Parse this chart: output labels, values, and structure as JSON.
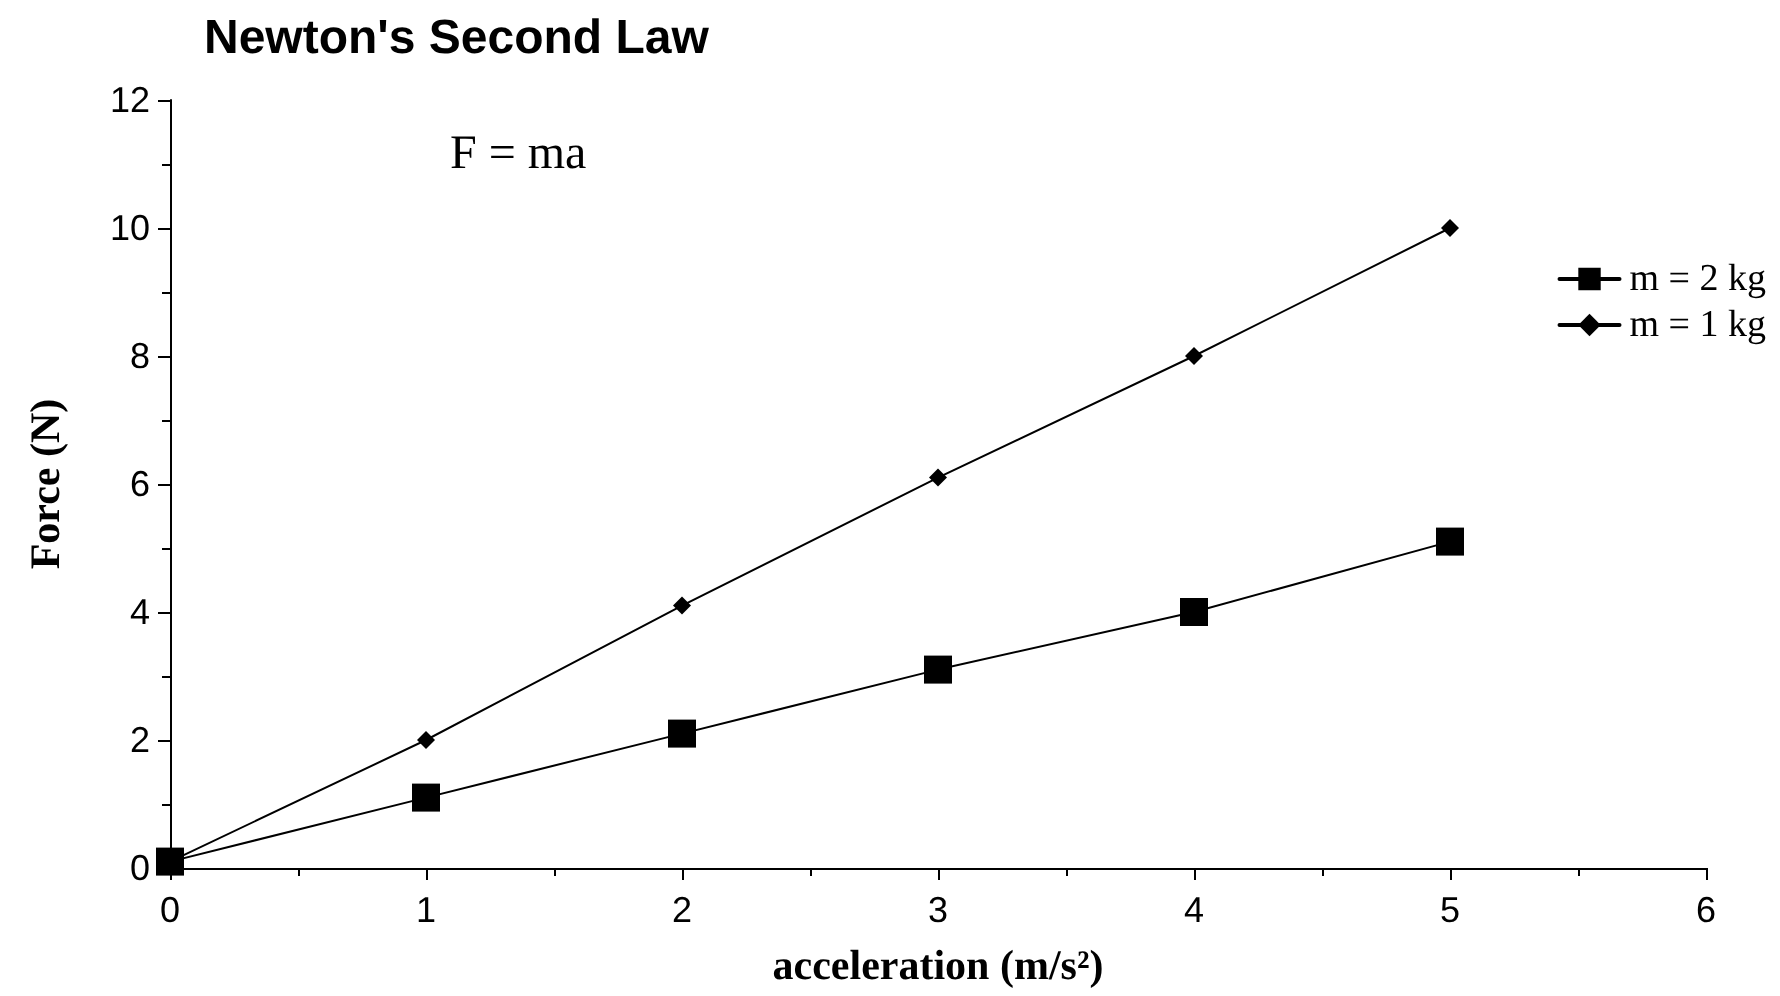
{
  "chart_data": {
    "type": "line",
    "title": "Newton's Second Law",
    "xlabel": "acceleration (m/s²)",
    "ylabel": "Force (N)",
    "annotations": [
      "F = ma"
    ],
    "series": [
      {
        "name": "m = 2 kg",
        "color": "#000000",
        "marker": "square",
        "x": [
          0,
          1,
          2,
          3,
          4,
          5
        ],
        "values": [
          0.1,
          1.1,
          2.1,
          3.1,
          4,
          5.1
        ]
      },
      {
        "name": "m = 1 kg",
        "color": "#000000",
        "marker": "diamond",
        "x": [
          0,
          1,
          2,
          3,
          4,
          5
        ],
        "values": [
          0.1,
          2,
          4.1,
          6.1,
          8,
          10
        ]
      }
    ],
    "xlim": [
      0,
      6
    ],
    "xticks": [
      0,
      1,
      2,
      3,
      4,
      5,
      6
    ],
    "ylim": [
      0,
      12
    ],
    "yticks": [
      0,
      2,
      4,
      6,
      8,
      10,
      12
    ],
    "grid": false,
    "legend": "top right",
    "line_style": "solid"
  }
}
